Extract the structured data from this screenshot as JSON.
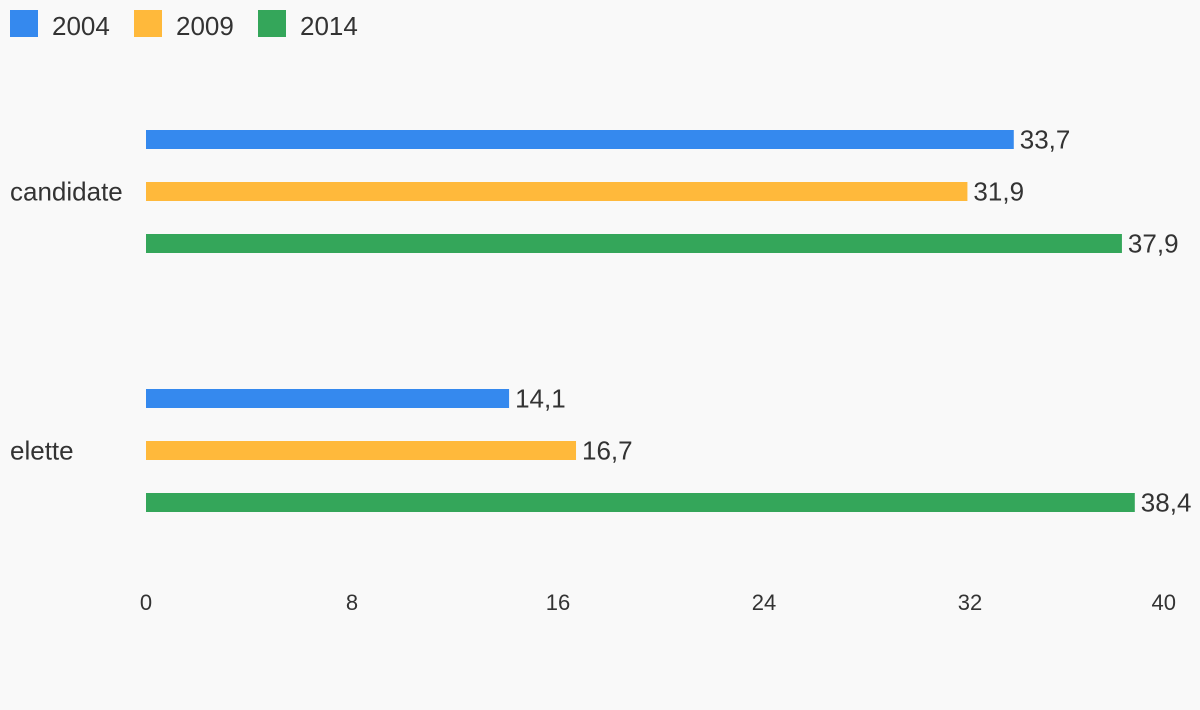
{
  "chart_data": {
    "type": "bar",
    "orientation": "horizontal",
    "categories": [
      "candidate",
      "elette"
    ],
    "series": [
      {
        "name": "2004",
        "values": [
          33.7,
          14.1
        ],
        "labels": [
          "33,7",
          "14,1"
        ],
        "color": "#3589ee"
      },
      {
        "name": "2009",
        "values": [
          31.9,
          16.7
        ],
        "labels": [
          "31,9",
          "16,7"
        ],
        "color": "#ffb93b"
      },
      {
        "name": "2014",
        "values": [
          37.9,
          38.4
        ],
        "labels": [
          "37,9",
          "38,4"
        ],
        "color": "#34a65a"
      }
    ],
    "xlim": [
      0,
      40
    ],
    "xticks": [
      0,
      8,
      16,
      24,
      32,
      40
    ],
    "xtick_labels": [
      "0",
      "8",
      "16",
      "24",
      "32",
      "40"
    ],
    "grid": false,
    "legend_position": "top-left",
    "title": "",
    "xlabel": "",
    "ylabel": ""
  }
}
